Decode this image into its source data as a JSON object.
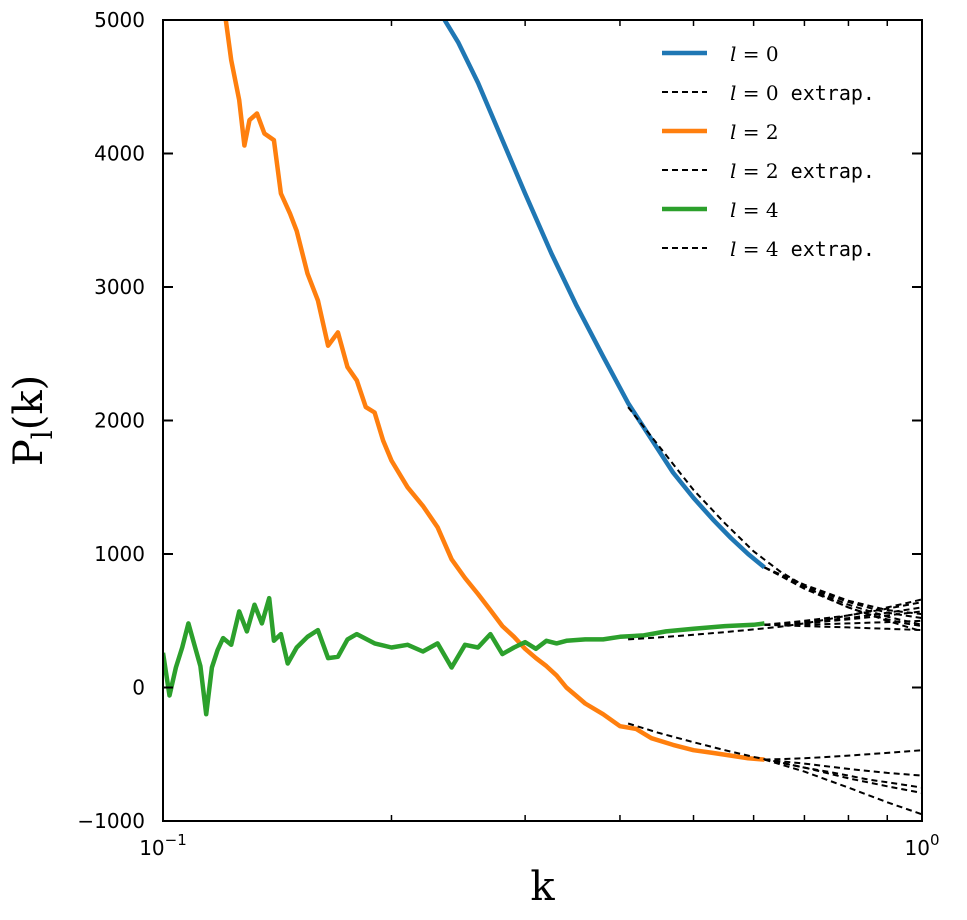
{
  "chart_data": {
    "type": "line",
    "title": "",
    "xlabel": "k",
    "ylabel_main": "P",
    "ylabel_sub": "l",
    "ylabel_tail": "(k)",
    "xscale": "log",
    "xlim": [
      0.1,
      1.0
    ],
    "ylim": [
      -1000,
      5000
    ],
    "grid": false,
    "legend_position": "top-right",
    "xticks": [
      {
        "value": 0.1,
        "base": "10",
        "exp": "−1"
      },
      {
        "value": 1.0,
        "base": "10",
        "exp": "0"
      }
    ],
    "yticks": [
      {
        "value": -1000,
        "label": "−1000"
      },
      {
        "value": 0,
        "label": "0"
      },
      {
        "value": 1000,
        "label": "1000"
      },
      {
        "value": 2000,
        "label": "2000"
      },
      {
        "value": 3000,
        "label": "3000"
      },
      {
        "value": 4000,
        "label": "4000"
      },
      {
        "value": 5000,
        "label": "5000"
      }
    ],
    "series": [
      {
        "name": "l = 0",
        "color": "#1f77b4",
        "style": "solid",
        "x": [
          0.235,
          0.245,
          0.26,
          0.28,
          0.3,
          0.325,
          0.35,
          0.38,
          0.41,
          0.44,
          0.47,
          0.5,
          0.53,
          0.56,
          0.59,
          0.62
        ],
        "y": [
          5000,
          4830,
          4530,
          4100,
          3700,
          3250,
          2870,
          2480,
          2130,
          1860,
          1610,
          1420,
          1260,
          1120,
          1000,
          900
        ]
      },
      {
        "name": "l = 2",
        "color": "#ff7f0e",
        "style": "solid",
        "x": [
          0.121,
          0.123,
          0.126,
          0.128,
          0.13,
          0.133,
          0.136,
          0.14,
          0.143,
          0.147,
          0.15,
          0.155,
          0.16,
          0.165,
          0.17,
          0.175,
          0.18,
          0.185,
          0.19,
          0.195,
          0.2,
          0.21,
          0.22,
          0.23,
          0.24,
          0.25,
          0.26,
          0.27,
          0.28,
          0.29,
          0.3,
          0.31,
          0.32,
          0.33,
          0.34,
          0.35,
          0.36,
          0.38,
          0.4,
          0.42,
          0.44,
          0.47,
          0.5,
          0.53,
          0.56,
          0.59,
          0.62
        ],
        "y": [
          5000,
          4700,
          4400,
          4060,
          4250,
          4300,
          4150,
          4100,
          3700,
          3550,
          3420,
          3100,
          2900,
          2560,
          2660,
          2400,
          2300,
          2100,
          2060,
          1850,
          1700,
          1500,
          1360,
          1200,
          960,
          820,
          700,
          580,
          460,
          380,
          290,
          220,
          160,
          90,
          0,
          -60,
          -120,
          -200,
          -290,
          -310,
          -380,
          -430,
          -470,
          -490,
          -510,
          -530,
          -540
        ]
      },
      {
        "name": "l = 4",
        "color": "#2ca02c",
        "style": "solid",
        "x": [
          0.1,
          0.102,
          0.104,
          0.106,
          0.108,
          0.11,
          0.112,
          0.114,
          0.116,
          0.118,
          0.12,
          0.123,
          0.126,
          0.129,
          0.132,
          0.135,
          0.138,
          0.14,
          0.143,
          0.146,
          0.15,
          0.155,
          0.16,
          0.165,
          0.17,
          0.175,
          0.18,
          0.19,
          0.2,
          0.21,
          0.22,
          0.23,
          0.24,
          0.25,
          0.26,
          0.27,
          0.28,
          0.29,
          0.3,
          0.31,
          0.32,
          0.33,
          0.34,
          0.36,
          0.38,
          0.4,
          0.43,
          0.46,
          0.5,
          0.55,
          0.6,
          0.62
        ],
        "y": [
          260,
          -60,
          150,
          300,
          480,
          320,
          160,
          -200,
          150,
          280,
          370,
          320,
          570,
          420,
          620,
          480,
          670,
          350,
          400,
          180,
          300,
          380,
          430,
          220,
          230,
          360,
          400,
          330,
          300,
          320,
          270,
          330,
          150,
          320,
          300,
          400,
          250,
          300,
          340,
          290,
          350,
          330,
          350,
          360,
          360,
          380,
          390,
          420,
          440,
          460,
          470,
          480
        ]
      },
      {
        "name": "l = 0 extrap.",
        "color": "#000000",
        "style": "dashed",
        "x": [
          0.41,
          0.45,
          0.5,
          0.55,
          0.6,
          0.65,
          0.7,
          0.75,
          0.8,
          0.85,
          0.9,
          0.95,
          1.0
        ],
        "y": [
          2100,
          1810,
          1480,
          1230,
          1020,
          870,
          760,
          670,
          600,
          550,
          510,
          480,
          460
        ]
      },
      {
        "name": "l = 2 extrap.",
        "color": "#000000",
        "style": "dashed",
        "x": [
          0.41,
          0.45,
          0.5,
          0.55,
          0.6,
          0.65,
          0.7,
          0.75,
          0.8,
          0.85,
          0.9,
          0.95,
          1.0
        ],
        "y": [
          -270,
          -340,
          -410,
          -470,
          -520,
          -560,
          -600,
          -630,
          -660,
          -690,
          -710,
          -730,
          -750
        ]
      },
      {
        "name": "l = 4 extrap.",
        "color": "#000000",
        "style": "dashed",
        "x": [
          0.41,
          0.45,
          0.5,
          0.55,
          0.6,
          0.65,
          0.7,
          0.75,
          0.8,
          0.85,
          0.9,
          0.95,
          1.0
        ],
        "y": [
          360,
          375,
          395,
          415,
          435,
          455,
          480,
          510,
          540,
          570,
          600,
          630,
          660
        ]
      }
    ],
    "extrap_fan": [
      {
        "color": "#000000",
        "x": [
          0.62,
          0.7,
          0.8,
          0.9,
          1.0
        ],
        "curves": [
          [
            900,
            760,
            640,
            560,
            520
          ],
          [
            900,
            750,
            620,
            530,
            470
          ],
          [
            900,
            740,
            600,
            500,
            420
          ],
          [
            900,
            770,
            650,
            580,
            550
          ]
        ]
      },
      {
        "color": "#000000",
        "x": [
          0.62,
          0.7,
          0.8,
          0.9,
          1.0
        ],
        "curves": [
          [
            -540,
            -530,
            -510,
            -490,
            -470
          ],
          [
            -540,
            -570,
            -610,
            -640,
            -660
          ],
          [
            -540,
            -600,
            -680,
            -740,
            -790
          ],
          [
            -540,
            -630,
            -750,
            -860,
            -950
          ]
        ]
      },
      {
        "color": "#000000",
        "x": [
          0.62,
          0.7,
          0.8,
          0.9,
          1.0
        ],
        "curves": [
          [
            470,
            500,
            540,
            590,
            640
          ],
          [
            470,
            490,
            520,
            560,
            600
          ],
          [
            470,
            480,
            510,
            540,
            570
          ],
          [
            470,
            470,
            480,
            490,
            500
          ],
          [
            470,
            460,
            450,
            440,
            430
          ]
        ]
      }
    ],
    "legend": [
      {
        "label": "l = 0",
        "math_l": "l",
        "rest": " = 0",
        "suffix": "",
        "color": "#1f77b4",
        "style": "solid"
      },
      {
        "label": "l = 0 extrap.",
        "math_l": "l",
        "rest": " = 0",
        "suffix": " extrap.",
        "color": "#000000",
        "style": "dashed"
      },
      {
        "label": "l = 2",
        "math_l": "l",
        "rest": " = 2",
        "suffix": "",
        "color": "#ff7f0e",
        "style": "solid"
      },
      {
        "label": "l = 2 extrap.",
        "math_l": "l",
        "rest": " = 2",
        "suffix": " extrap.",
        "color": "#000000",
        "style": "dashed"
      },
      {
        "label": "l = 4",
        "math_l": "l",
        "rest": " = 4",
        "suffix": "",
        "color": "#2ca02c",
        "style": "solid"
      },
      {
        "label": "l = 4 extrap.",
        "math_l": "l",
        "rest": " = 4",
        "suffix": " extrap.",
        "color": "#000000",
        "style": "dashed"
      }
    ]
  }
}
